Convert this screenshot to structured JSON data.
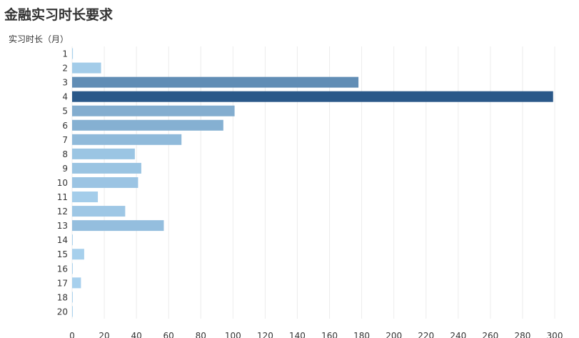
{
  "title": "金融实习时长要求",
  "chart_data": {
    "type": "bar",
    "orientation": "horizontal",
    "title": "金融实习时长要求",
    "ylabel": "实习时长（月）",
    "xlabel": "",
    "categories": [
      "1",
      "2",
      "3",
      "4",
      "5",
      "6",
      "7",
      "8",
      "9",
      "10",
      "11",
      "12",
      "13",
      "14",
      "15",
      "16",
      "17",
      "18",
      "20"
    ],
    "values": [
      0.5,
      18,
      178,
      299,
      101,
      94,
      68,
      39,
      43,
      41,
      16,
      33,
      57,
      0.3,
      7.5,
      0.3,
      5.5,
      0.3,
      0.3
    ],
    "xlim": [
      0,
      300
    ],
    "xticks": [
      "0",
      "20",
      "40",
      "60",
      "80",
      "100",
      "120",
      "140",
      "160",
      "180",
      "200",
      "220",
      "240",
      "260",
      "280",
      "300"
    ],
    "grid": true,
    "color_scale": {
      "low": "#a9d2ee",
      "high": "#2a5889"
    }
  }
}
